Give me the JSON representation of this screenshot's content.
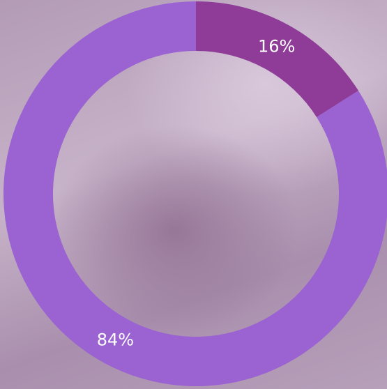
{
  "chart_data": {
    "type": "donut",
    "values": [
      16,
      84
    ],
    "value_labels": [
      "16%",
      "84%"
    ],
    "colors": [
      "#8f3c99",
      "#9b62d2"
    ]
  }
}
